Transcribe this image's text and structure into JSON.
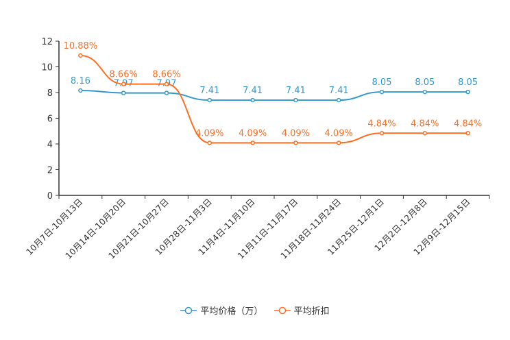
{
  "chart_data": {
    "type": "line",
    "categories": [
      "10月7日-10月13日",
      "10月14日-10月20日",
      "10月21日-10月27日",
      "10月28日-11月3日",
      "11月4日-11月10日",
      "11月11日-11月17日",
      "11月18日-11月24日",
      "11月25日-12月1日",
      "12月2日-12月8日",
      "12月9日-12月15日"
    ],
    "series": [
      {
        "name": "平均价格（万）",
        "color": "#3399cc",
        "values": [
          8.16,
          7.97,
          7.97,
          7.41,
          7.41,
          7.41,
          7.41,
          8.05,
          8.05,
          8.05
        ],
        "labels": [
          "8.16",
          "7.97",
          "7.97",
          "7.41",
          "7.41",
          "7.41",
          "7.41",
          "8.05",
          "8.05",
          "8.05"
        ]
      },
      {
        "name": "平均折扣",
        "color": "#ff6d1f",
        "values": [
          10.88,
          8.66,
          8.66,
          4.09,
          4.09,
          4.09,
          4.09,
          4.84,
          4.84,
          4.84
        ],
        "labels": [
          "10.88%",
          "8.66%",
          "8.66%",
          "4.09%",
          "4.09%",
          "4.09%",
          "4.09%",
          "4.84%",
          "4.84%",
          "4.84%"
        ]
      }
    ],
    "ylim": [
      0,
      12
    ],
    "yticks": [
      "0",
      "2",
      "4",
      "6",
      "8",
      "10",
      "12"
    ],
    "title": "",
    "xlabel": "",
    "ylabel": "",
    "legend_position": "bottom-center"
  }
}
